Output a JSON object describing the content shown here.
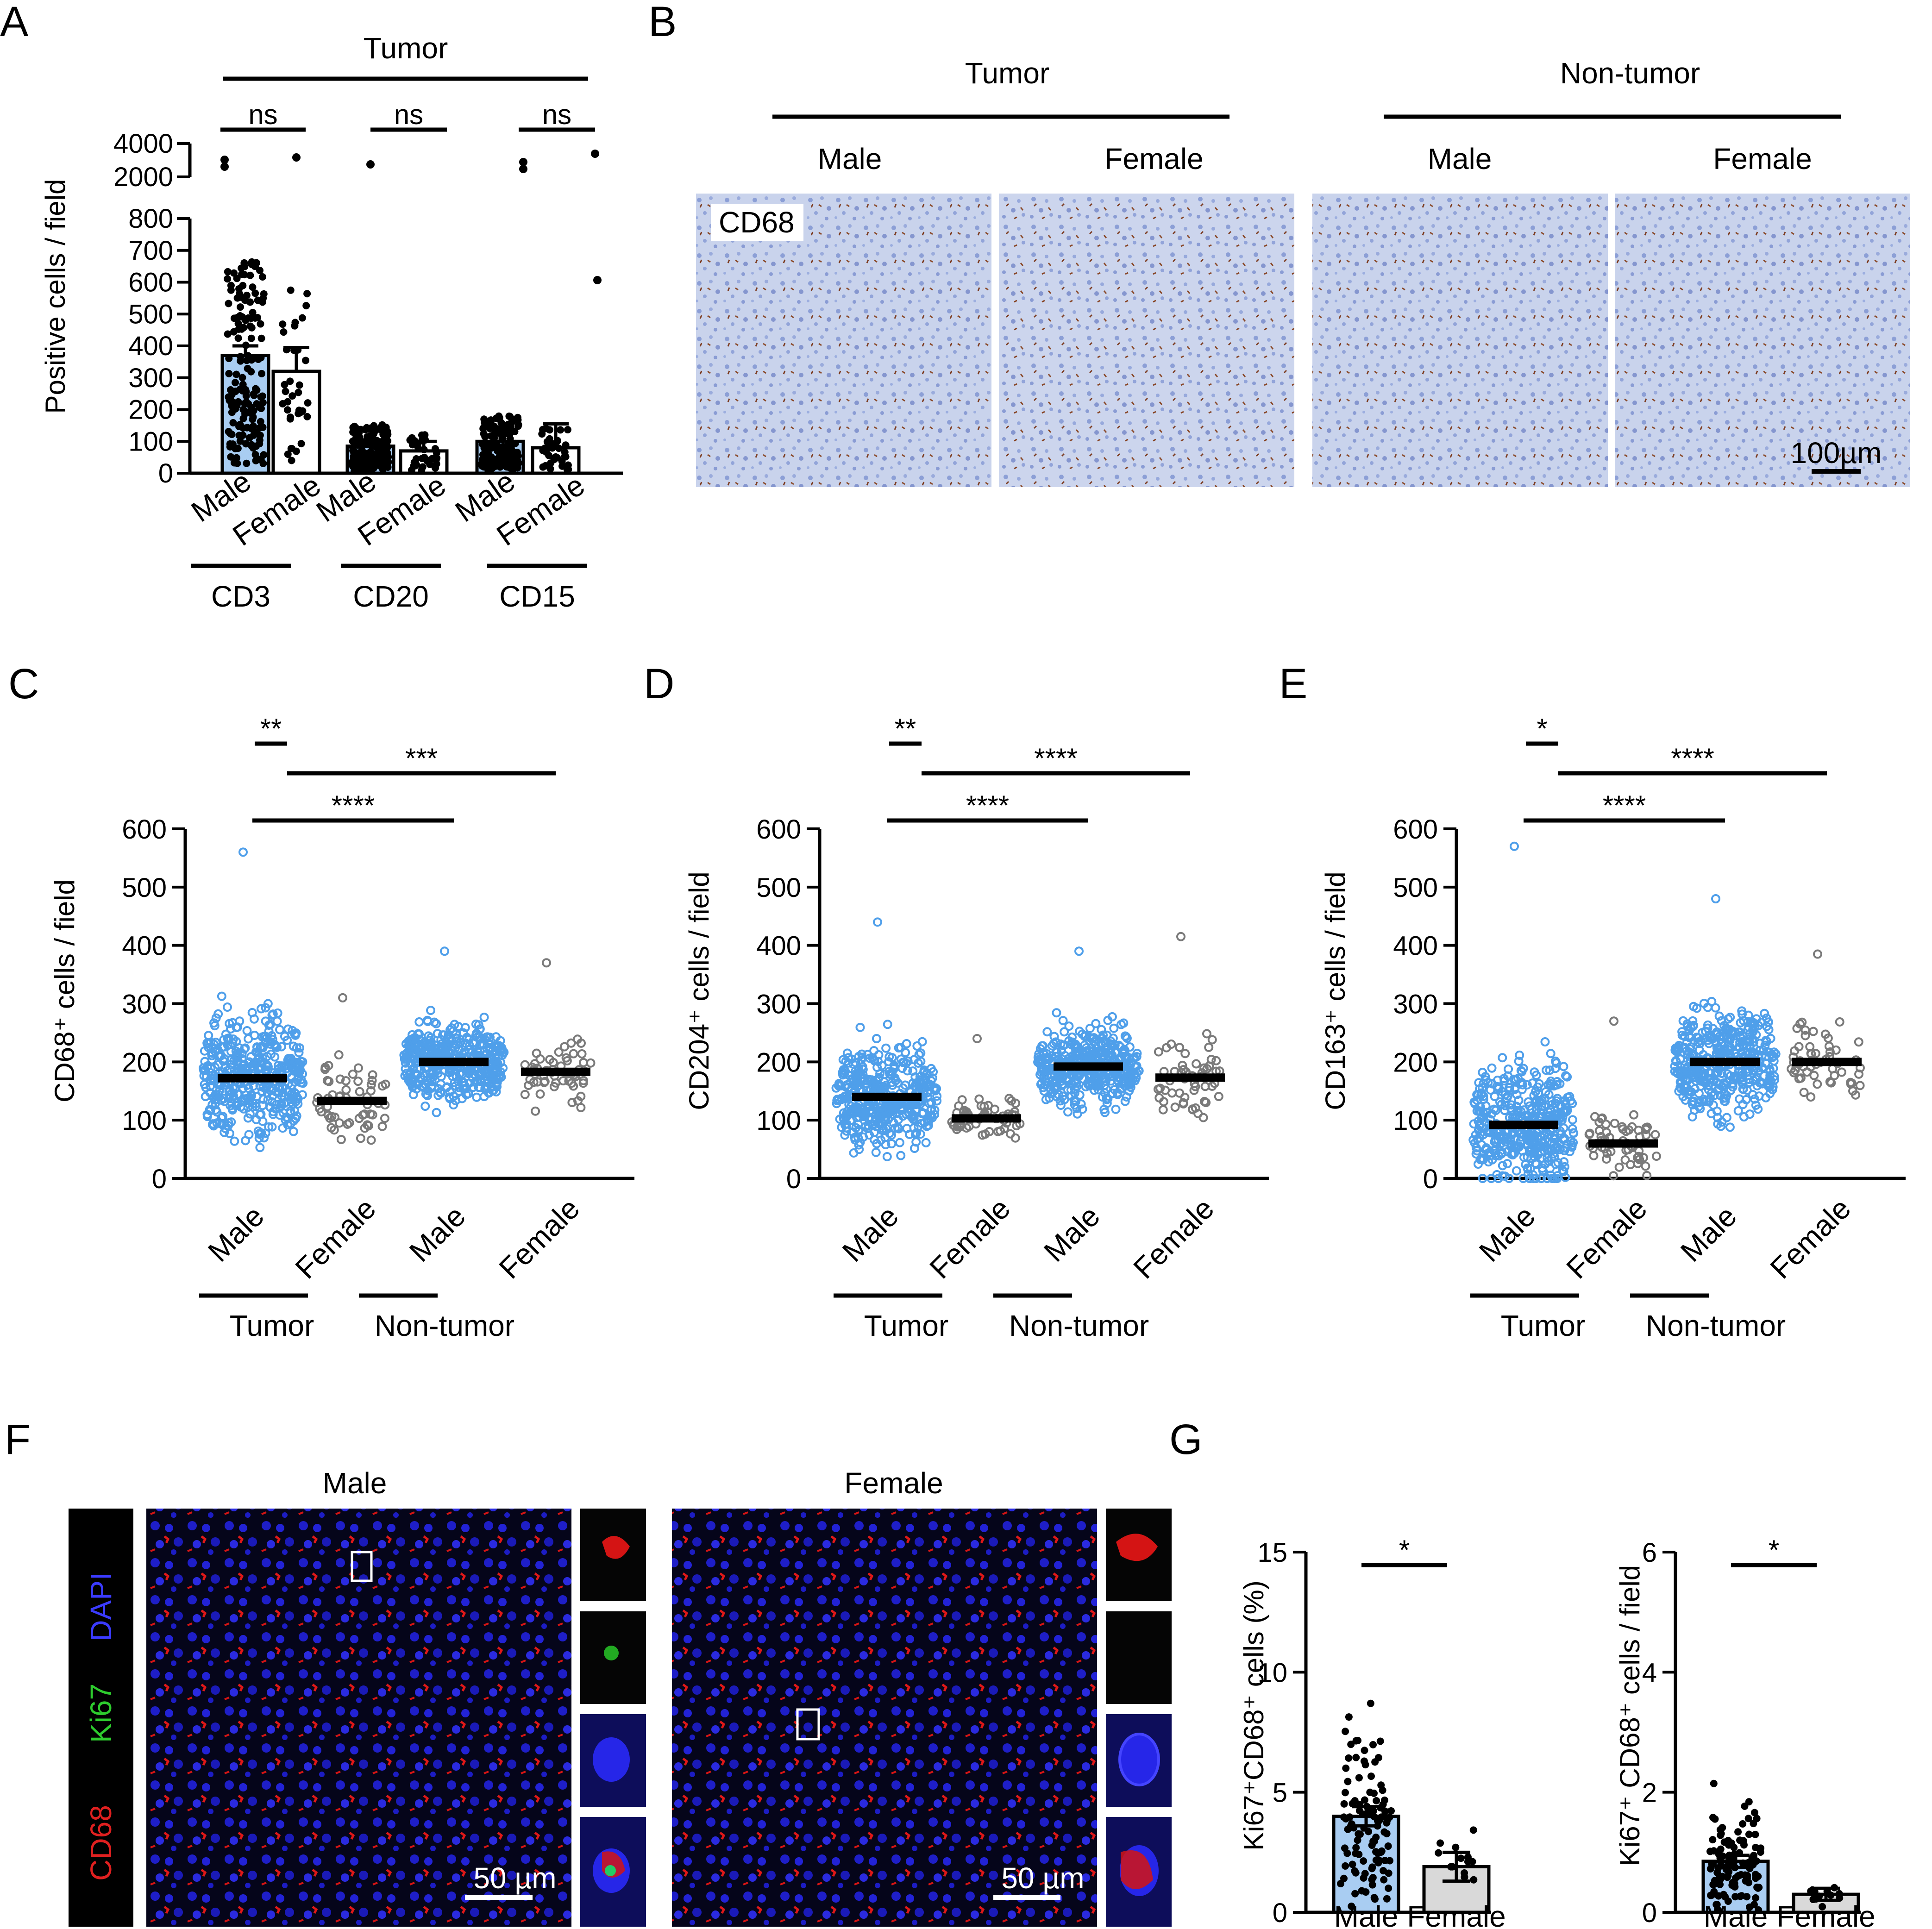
{
  "colors": {
    "blue": "#4f9fea",
    "blue_fill": "#a9cdf2",
    "grey": "#7a7a7a",
    "grey_fill": "#d9d9d9",
    "black": "#000000",
    "red": "#e02020",
    "green": "#2ecc2e",
    "dapi": "#1b1bdd"
  },
  "panel_B": {
    "header_tumor": "Tumor",
    "header_nontumor": "Non-tumor",
    "male": "Male",
    "female": "Female",
    "stain": "CD68",
    "scalebar": "100µm"
  },
  "panel_F": {
    "male": "Male",
    "female": "Female",
    "channels": [
      "DAPI",
      "Ki67",
      "CD68"
    ],
    "scalebar": "50 µm"
  },
  "chart_data": [
    {
      "panel": "A",
      "type": "bar",
      "ylabel": "Positive cells / field",
      "header": "Tumor",
      "yticks": [
        "0",
        "100",
        "200",
        "300",
        "400",
        "500",
        "600",
        "700",
        "800",
        "2000",
        "4000"
      ],
      "categories": [
        "Male",
        "Female",
        "Male",
        "Female",
        "Male",
        "Female"
      ],
      "groups": [
        "CD3",
        "CD20",
        "CD15"
      ],
      "values": [
        370,
        320,
        85,
        70,
        100,
        80
      ],
      "errors": [
        30,
        75,
        20,
        30,
        20,
        75
      ],
      "comparisons": [
        "ns",
        "ns",
        "ns"
      ]
    },
    {
      "panel": "C",
      "type": "scatter",
      "ylabel": "CD68⁺ cells / field",
      "ylim": [
        0,
        600
      ],
      "yticks": [
        "0",
        "100",
        "200",
        "300",
        "400",
        "500",
        "600"
      ],
      "categories": [
        "Male",
        "Female",
        "Male",
        "Female"
      ],
      "groups": [
        "Tumor",
        "Non-tumor"
      ],
      "means": [
        172,
        133,
        200,
        183
      ],
      "ranges": [
        [
          0,
          560
        ],
        [
          20,
          310
        ],
        [
          50,
          390
        ],
        [
          40,
          370
        ]
      ],
      "comparisons": [
        "**",
        "***",
        "****"
      ]
    },
    {
      "panel": "D",
      "type": "scatter",
      "ylabel": "CD204⁺ cells / field",
      "ylim": [
        0,
        600
      ],
      "yticks": [
        "0",
        "100",
        "200",
        "300",
        "400",
        "500",
        "600"
      ],
      "categories": [
        "Male",
        "Female",
        "Male",
        "Female"
      ],
      "groups": [
        "Tumor",
        "Non-tumor"
      ],
      "means": [
        140,
        103,
        192,
        173
      ],
      "ranges": [
        [
          0,
          440
        ],
        [
          20,
          240
        ],
        [
          40,
          390
        ],
        [
          10,
          415
        ]
      ],
      "comparisons": [
        "**",
        "****",
        "****"
      ]
    },
    {
      "panel": "E",
      "type": "scatter",
      "ylabel": "CD163⁺ cells / field",
      "ylim": [
        0,
        600
      ],
      "yticks": [
        "0",
        "100",
        "200",
        "300",
        "400",
        "500",
        "600"
      ],
      "categories": [
        "Male",
        "Female",
        "Male",
        "Female"
      ],
      "groups": [
        "Tumor",
        "Non-tumor"
      ],
      "means": [
        92,
        60,
        200,
        200
      ],
      "ranges": [
        [
          0,
          570
        ],
        [
          0,
          270
        ],
        [
          0,
          480
        ],
        [
          0,
          385
        ]
      ],
      "comparisons": [
        "*",
        "****",
        "****"
      ]
    },
    {
      "panel": "G1",
      "type": "bar",
      "ylabel": "Ki67⁺CD68⁺ cells (%)",
      "ylim": [
        0,
        15
      ],
      "yticks": [
        "0",
        "5",
        "10",
        "15"
      ],
      "categories": [
        "Male",
        "Female"
      ],
      "values": [
        4.0,
        1.9
      ],
      "errors": [
        0.4,
        0.6
      ],
      "comparisons": [
        "*"
      ]
    },
    {
      "panel": "G2",
      "type": "bar",
      "ylabel": "Ki67⁺ CD68⁺ cells / field",
      "ylim": [
        0,
        6
      ],
      "yticks": [
        "0",
        "2",
        "4",
        "6"
      ],
      "categories": [
        "Male",
        "Female"
      ],
      "values": [
        0.85,
        0.3
      ],
      "errors": [
        0.1,
        0.1
      ],
      "comparisons": [
        "*"
      ]
    }
  ]
}
